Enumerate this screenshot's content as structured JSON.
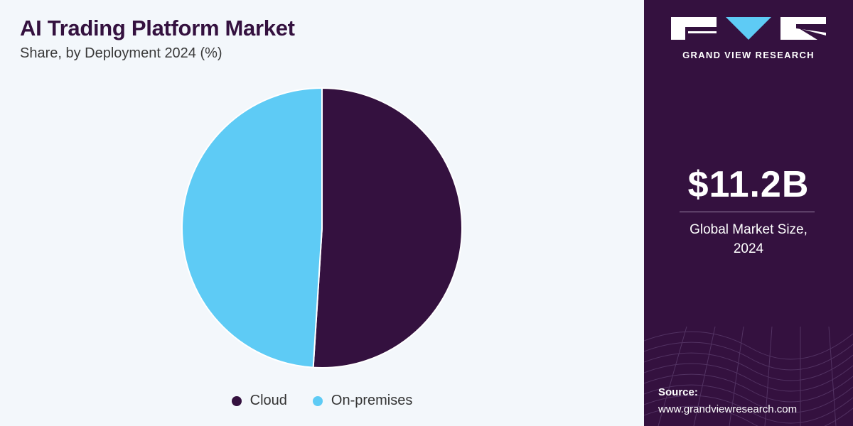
{
  "chart_data": {
    "type": "pie",
    "title": "AI Trading Platform Market",
    "subtitle": "Share, by Deployment 2024 (%)",
    "categories": [
      "Cloud",
      "On-premises"
    ],
    "values": [
      51,
      49
    ],
    "colors": [
      "#34113f",
      "#5ecbf5"
    ],
    "legend_position": "bottom"
  },
  "sidebar": {
    "brand": "GRAND VIEW RESEARCH",
    "market_size": "$11.2B",
    "market_label_line1": "Global Market Size,",
    "market_label_line2": "2024",
    "source_label": "Source:",
    "source_url": "www.grandviewresearch.com"
  }
}
